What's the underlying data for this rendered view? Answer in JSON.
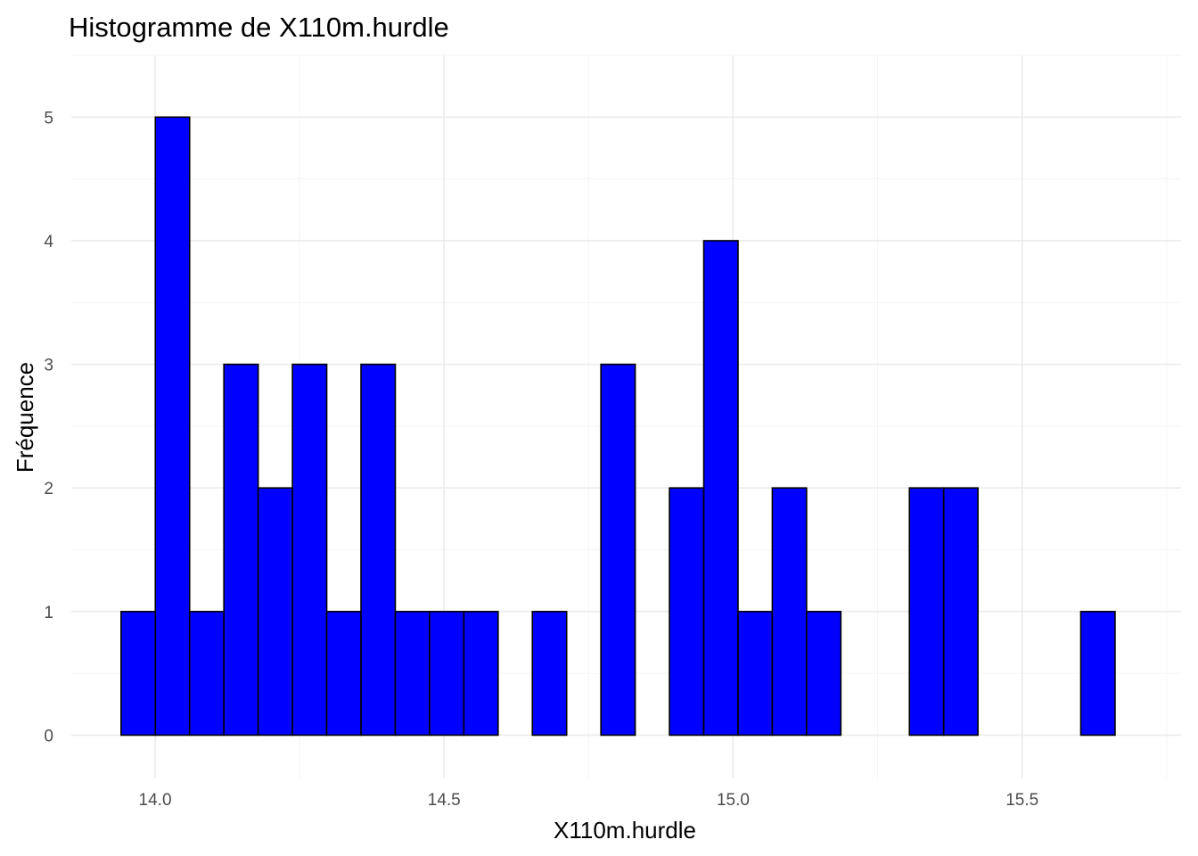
{
  "chart_data": {
    "type": "bar",
    "title": "Histogramme de X110m.hurdle",
    "xlabel": "X110m.hurdle",
    "ylabel": "Fréquence",
    "bin_width": 0.0593,
    "bin_start": 13.9411,
    "values": [
      1,
      5,
      1,
      3,
      2,
      3,
      1,
      3,
      1,
      1,
      1,
      0,
      1,
      0,
      3,
      0,
      2,
      4,
      1,
      2,
      1,
      0,
      0,
      2,
      2,
      0,
      0,
      0,
      1
    ],
    "xlim": [
      13.855,
      15.775
    ],
    "ylim": [
      -0.35,
      5.5
    ],
    "x_ticks": [
      14.0,
      14.5,
      15.0,
      15.5
    ],
    "x_tick_labels": [
      "14.0",
      "14.5",
      "15.0",
      "15.5"
    ],
    "y_ticks": [
      0,
      1,
      2,
      3,
      4,
      5
    ],
    "y_tick_labels": [
      "0",
      "1",
      "2",
      "3",
      "4",
      "5"
    ],
    "bar_color": "#0000FF",
    "bar_outline": "#000000",
    "grid": true,
    "legend": false
  }
}
